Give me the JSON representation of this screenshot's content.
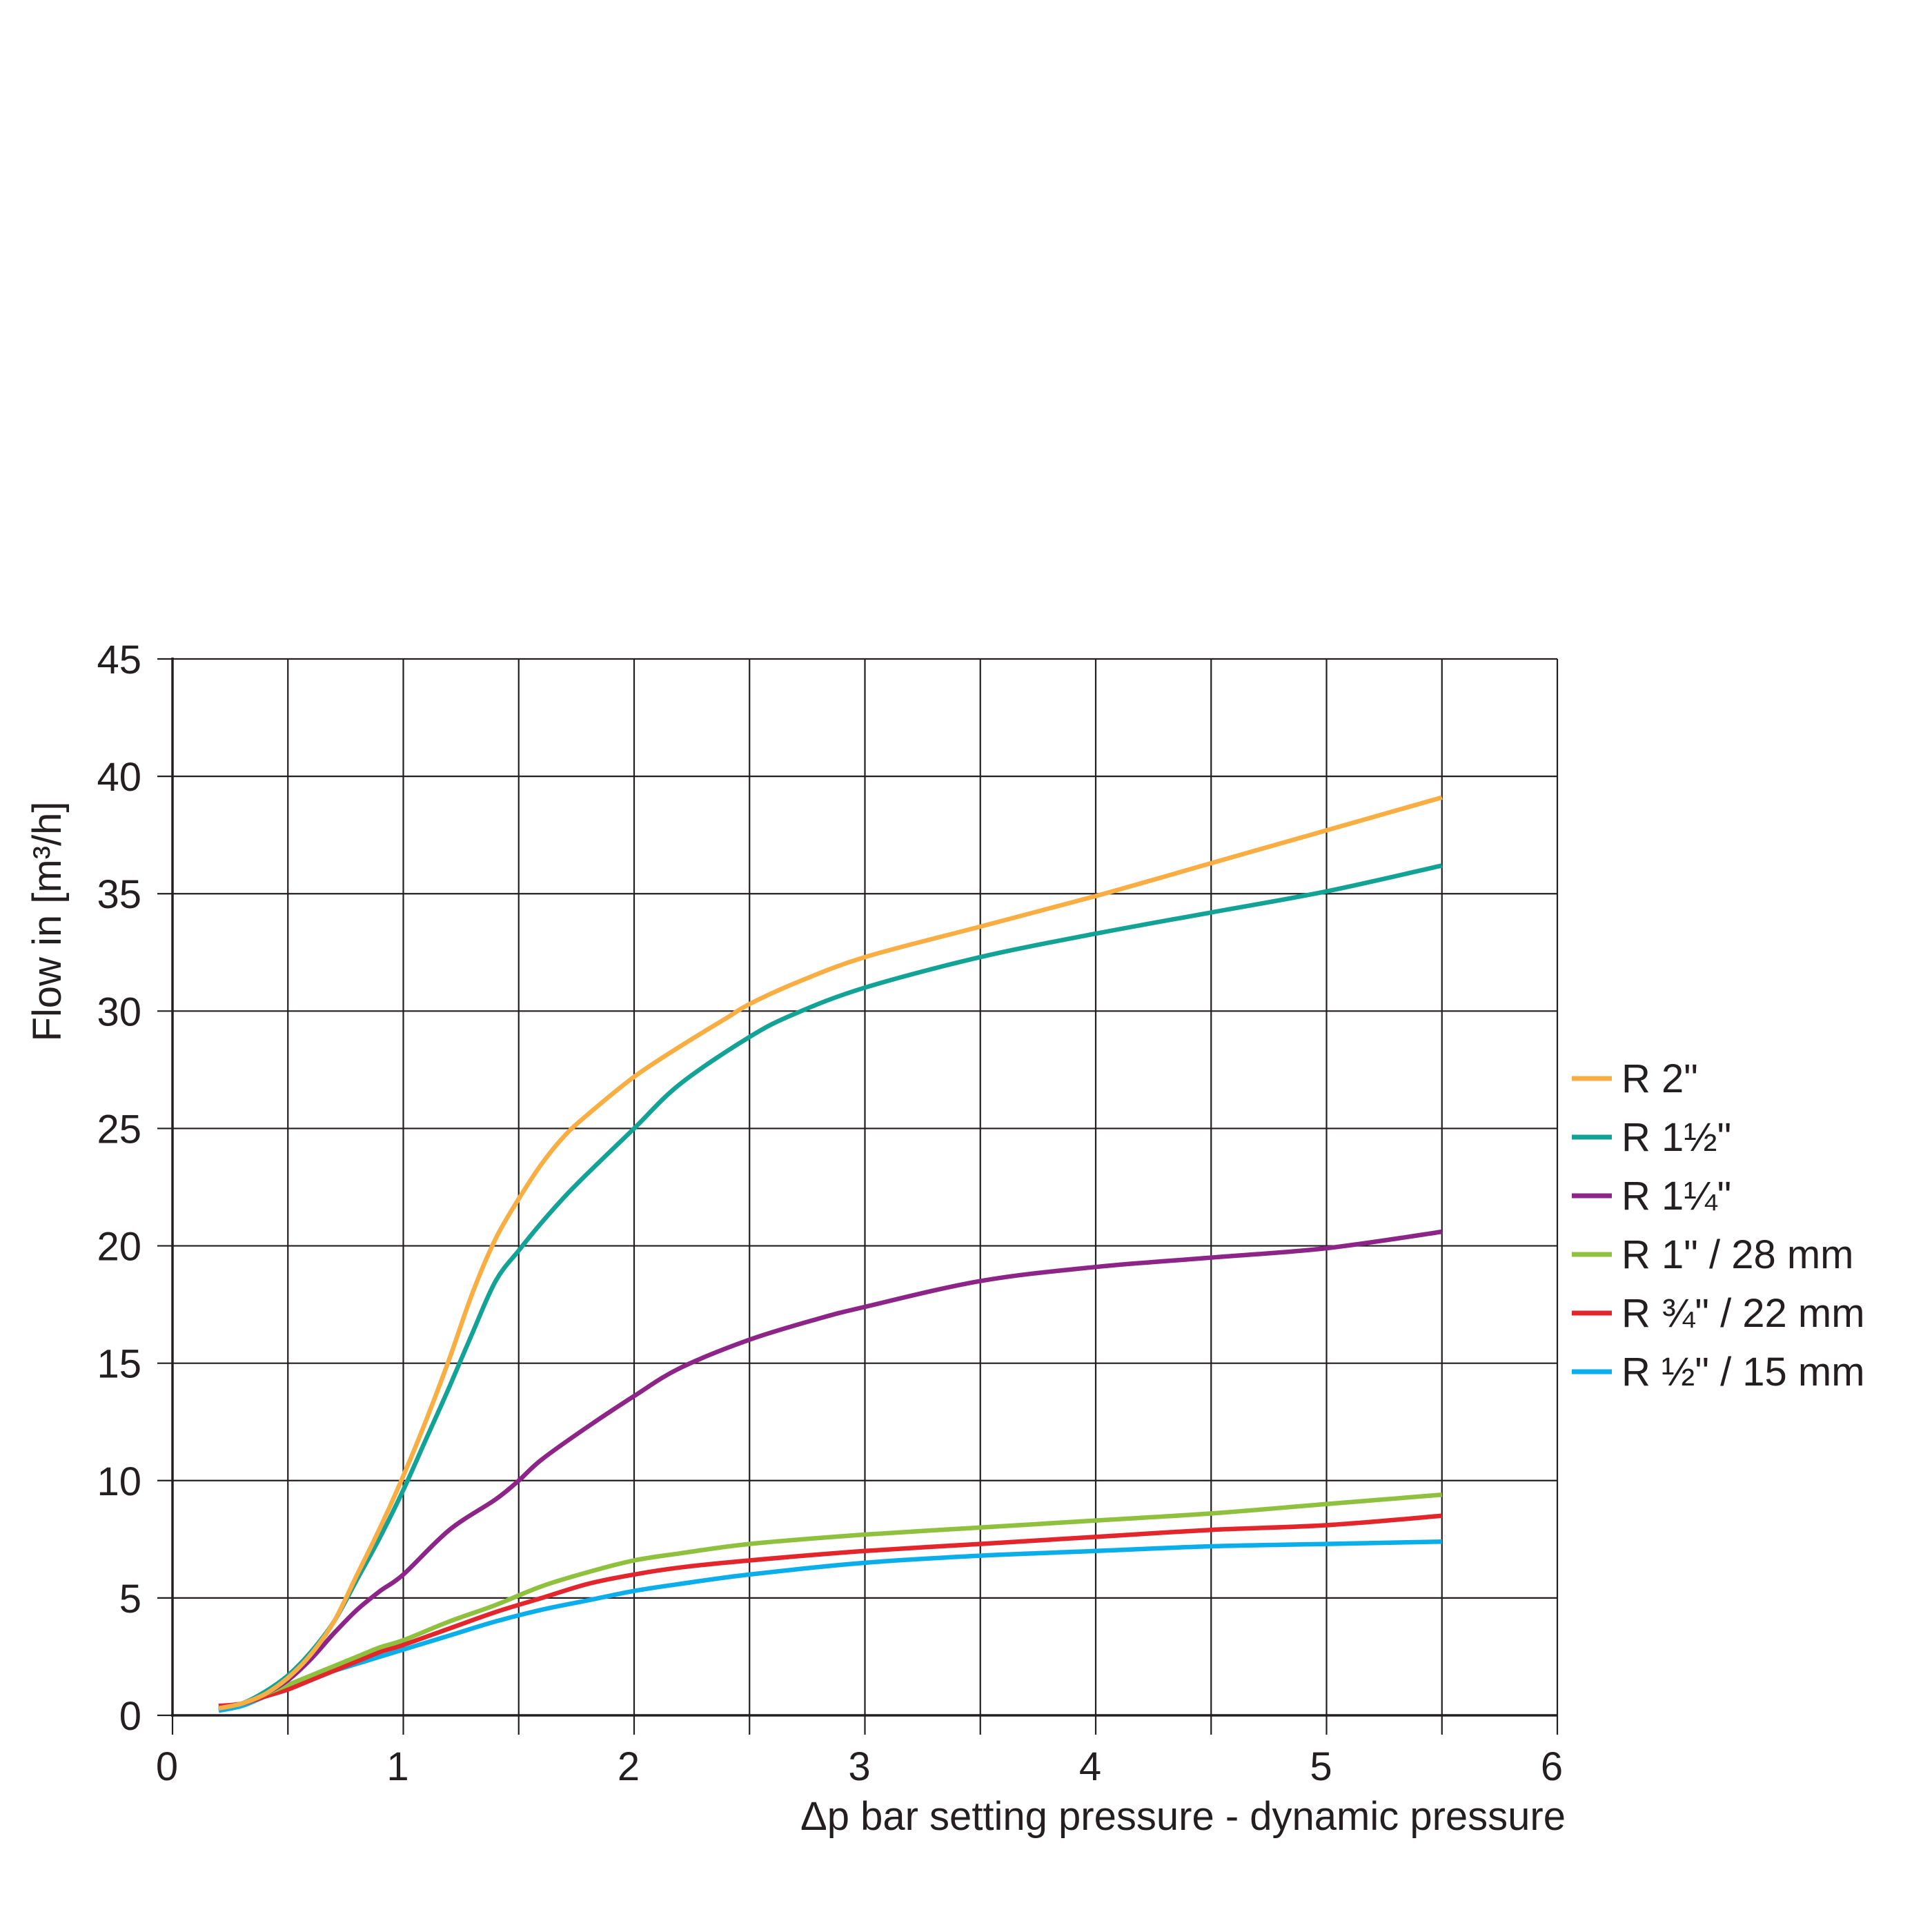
{
  "chart_data": {
    "type": "line",
    "xlabel": "Δp bar setting pressure - dynamic pressure",
    "ylabel": "Flow in [m³/h]",
    "xlim": [
      0,
      6
    ],
    "ylim": [
      0,
      45
    ],
    "x_ticks": [
      "0",
      "1",
      "2",
      "3",
      "4",
      "5",
      "6"
    ],
    "y_ticks": [
      "0",
      "5",
      "10",
      "15",
      "20",
      "25",
      "30",
      "35",
      "40",
      "45"
    ],
    "grid": true,
    "legend_position": "right",
    "series": [
      {
        "name": "R 2\"",
        "color": "#f8ae43",
        "x": [
          0.2,
          0.3,
          0.4,
          0.5,
          0.6,
          0.7,
          0.8,
          0.9,
          1.0,
          1.1,
          1.2,
          1.3,
          1.4,
          1.5,
          1.6,
          1.7,
          1.8,
          2.0,
          2.2,
          2.4,
          2.5,
          2.7,
          3.0,
          3.5,
          4.0,
          4.5,
          5.0,
          5.5
        ],
        "y": [
          0.3,
          0.5,
          0.9,
          1.6,
          2.6,
          4.0,
          6.0,
          8.0,
          10.2,
          12.6,
          15.2,
          18.0,
          20.3,
          22.0,
          23.5,
          24.7,
          25.6,
          27.2,
          28.5,
          29.7,
          30.3,
          31.2,
          32.3,
          33.6,
          34.9,
          36.3,
          37.7,
          39.1
        ]
      },
      {
        "name": "R 1½\"",
        "color": "#12a296",
        "x": [
          0.2,
          0.3,
          0.4,
          0.5,
          0.6,
          0.7,
          0.8,
          0.9,
          1.0,
          1.1,
          1.2,
          1.3,
          1.4,
          1.5,
          1.6,
          1.7,
          1.8,
          2.0,
          2.2,
          2.5,
          2.7,
          3.0,
          3.5,
          4.0,
          4.5,
          5.0,
          5.5
        ],
        "y": [
          0.3,
          0.5,
          1.0,
          1.7,
          2.7,
          4.0,
          5.8,
          7.6,
          9.6,
          11.8,
          14.0,
          16.3,
          18.5,
          19.8,
          21.0,
          22.1,
          23.1,
          25.0,
          26.9,
          28.9,
          29.9,
          31.0,
          32.3,
          33.3,
          34.2,
          35.1,
          36.2
        ]
      },
      {
        "name": "R 1¼\"",
        "color": "#8c2587",
        "x": [
          0.2,
          0.3,
          0.4,
          0.5,
          0.6,
          0.7,
          0.8,
          0.9,
          1.0,
          1.2,
          1.4,
          1.5,
          1.6,
          1.8,
          2.0,
          2.2,
          2.5,
          2.8,
          3.0,
          3.5,
          4.0,
          4.5,
          5.0,
          5.5
        ],
        "y": [
          0.3,
          0.5,
          0.9,
          1.5,
          2.4,
          3.5,
          4.5,
          5.3,
          6.0,
          7.9,
          9.2,
          10.0,
          10.9,
          12.3,
          13.6,
          14.8,
          16.0,
          16.9,
          17.4,
          18.5,
          19.1,
          19.5,
          19.9,
          20.6
        ]
      },
      {
        "name": "R 1\" / 28 mm",
        "color": "#8fc13f",
        "x": [
          0.2,
          0.3,
          0.4,
          0.5,
          0.6,
          0.7,
          0.8,
          0.9,
          1.0,
          1.2,
          1.4,
          1.6,
          1.8,
          2.0,
          2.2,
          2.5,
          3.0,
          3.5,
          4.0,
          4.5,
          5.0,
          5.5
        ],
        "y": [
          0.3,
          0.5,
          0.9,
          1.3,
          1.7,
          2.1,
          2.5,
          2.9,
          3.2,
          4.0,
          4.7,
          5.5,
          6.1,
          6.6,
          6.9,
          7.3,
          7.7,
          8.0,
          8.3,
          8.6,
          9.0,
          9.4
        ]
      },
      {
        "name": "R ¾\" / 22 mm",
        "color": "#e2262c",
        "x": [
          0.2,
          0.3,
          0.4,
          0.5,
          0.6,
          0.7,
          0.8,
          0.9,
          1.0,
          1.2,
          1.4,
          1.6,
          1.8,
          2.0,
          2.2,
          2.5,
          3.0,
          3.5,
          4.0,
          4.5,
          5.0,
          5.5
        ],
        "y": [
          0.4,
          0.5,
          0.8,
          1.1,
          1.5,
          1.9,
          2.3,
          2.7,
          3.0,
          3.7,
          4.4,
          5.0,
          5.6,
          6.0,
          6.3,
          6.6,
          7.0,
          7.3,
          7.6,
          7.9,
          8.1,
          8.5
        ]
      },
      {
        "name": "R ½\" / 15 mm",
        "color": "#0aaeea",
        "x": [
          0.2,
          0.3,
          0.4,
          0.5,
          0.6,
          0.7,
          0.8,
          0.9,
          1.0,
          1.2,
          1.4,
          1.6,
          1.8,
          2.0,
          2.2,
          2.5,
          3.0,
          3.5,
          4.0,
          4.5,
          5.0,
          5.5
        ],
        "y": [
          0.2,
          0.4,
          0.8,
          1.2,
          1.6,
          1.9,
          2.2,
          2.5,
          2.8,
          3.4,
          4.0,
          4.5,
          4.9,
          5.3,
          5.6,
          6.0,
          6.5,
          6.8,
          7.0,
          7.2,
          7.3,
          7.4
        ]
      }
    ]
  }
}
